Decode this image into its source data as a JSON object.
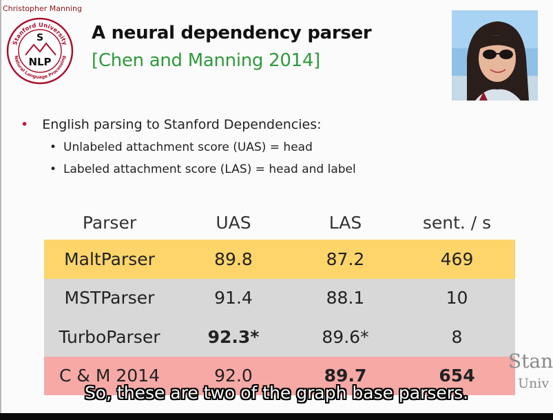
{
  "header": {
    "author": "Christopher Manning",
    "title": "A neural dependency parser",
    "citation": "[Chen and Manning 2014]"
  },
  "logo": {
    "text_top": "Stanford University",
    "text_bottom": "Natural Language Processing",
    "letters": [
      "S",
      "NLP"
    ],
    "color": "#a8102e"
  },
  "bullets": {
    "main": "English parsing to Stanford Dependencies:",
    "sub": [
      "Unlabeled attachment score (UAS) = head",
      "Labeled attachment score (LAS) = head and label"
    ]
  },
  "table": {
    "headers": [
      "Parser",
      "UAS",
      "LAS",
      "sent. / s"
    ],
    "rows": [
      {
        "cells": [
          "MaltParser",
          "89.8",
          "87.2",
          "469"
        ],
        "bg": "#fdd56a"
      },
      {
        "cells": [
          "MSTParser",
          "91.4",
          "88.1",
          "10"
        ],
        "bg": "#d8d8d8"
      },
      {
        "cells": [
          "TurboParser",
          "92.3*",
          "89.6*",
          "8"
        ],
        "bg": "#d8d8d8"
      },
      {
        "cells": [
          "C & M 2014",
          "92.0",
          "89.7",
          "654"
        ],
        "bg": "#f7a9a6"
      }
    ]
  },
  "watermark": {
    "line1": "Stan",
    "line2": "Univ"
  },
  "caption": "So, these are two of the graph base parsers.",
  "colors": {
    "accent_red": "#c8102e",
    "citation_green": "#2e9a3c",
    "highlight_yellow": "#fdd56a",
    "highlight_gray": "#d8d8d8",
    "highlight_pink": "#f7a9a6"
  }
}
